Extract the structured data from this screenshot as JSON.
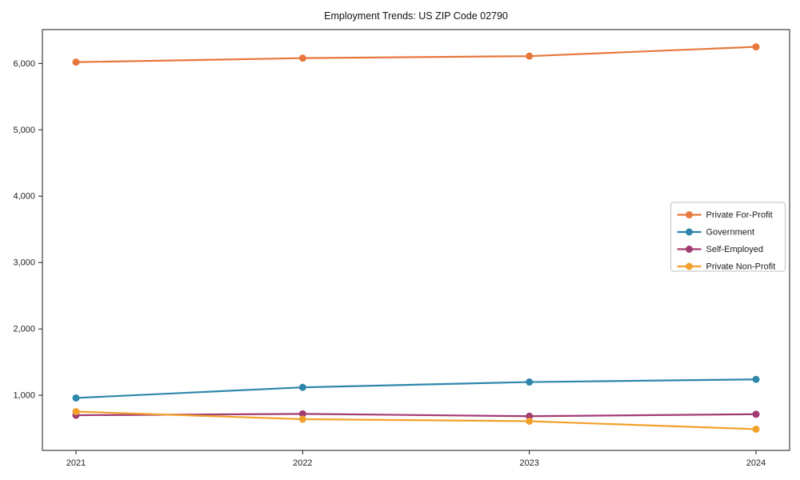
{
  "chart_data": {
    "type": "line",
    "title": "Employment Trends: US ZIP Code 02790",
    "xlabel": "",
    "ylabel": "",
    "x": [
      2021,
      2022,
      2023,
      2024
    ],
    "x_tick_labels": [
      "2021",
      "2022",
      "2023",
      "2024"
    ],
    "yticks": [
      1000,
      2000,
      3000,
      4000,
      5000,
      6000
    ],
    "y_tick_labels": [
      "1,000",
      "2,000",
      "3,000",
      "4,000",
      "5,000",
      "6,000"
    ],
    "ylim": [
      170,
      6510
    ],
    "grid": false,
    "legend_position": "center-right",
    "background_color": "#ffffff",
    "spine_color": "#1a1a1a",
    "legend_border_color": "#c0c0c0",
    "series": [
      {
        "name": "Private For-Profit",
        "color": "#E8773D",
        "values": [
          6020,
          6080,
          6110,
          6250
        ]
      },
      {
        "name": "Government",
        "color": "#2E86AB",
        "values": [
          960,
          1120,
          1200,
          1240
        ]
      },
      {
        "name": "Self-Employed",
        "color": "#A23B72",
        "values": [
          700,
          720,
          685,
          715
        ]
      },
      {
        "name": "Private Non-Profit",
        "color": "#F2A12C",
        "values": [
          755,
          640,
          610,
          490
        ]
      }
    ]
  }
}
